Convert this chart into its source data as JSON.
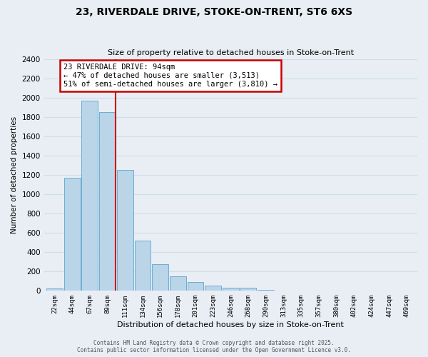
{
  "title1": "23, RIVERDALE DRIVE, STOKE-ON-TRENT, ST6 6XS",
  "title2": "Size of property relative to detached houses in Stoke-on-Trent",
  "xlabel": "Distribution of detached houses by size in Stoke-on-Trent",
  "ylabel": "Number of detached properties",
  "bar_labels": [
    "22sqm",
    "44sqm",
    "67sqm",
    "89sqm",
    "111sqm",
    "134sqm",
    "156sqm",
    "178sqm",
    "201sqm",
    "223sqm",
    "246sqm",
    "268sqm",
    "290sqm",
    "313sqm",
    "335sqm",
    "357sqm",
    "380sqm",
    "402sqm",
    "424sqm",
    "447sqm",
    "469sqm"
  ],
  "bar_values": [
    25,
    1170,
    1970,
    1850,
    1250,
    520,
    275,
    150,
    90,
    55,
    35,
    30,
    10,
    5,
    2,
    1,
    1,
    0,
    0,
    0,
    0
  ],
  "bar_color": "#bad4e8",
  "bar_edge_color": "#6aaed6",
  "vline_color": "#cc0000",
  "annotation_text": "23 RIVERDALE DRIVE: 94sqm\n← 47% of detached houses are smaller (3,513)\n51% of semi-detached houses are larger (3,810) →",
  "annotation_box_color": "white",
  "annotation_box_edge_color": "#cc0000",
  "ylim": [
    0,
    2400
  ],
  "yticks": [
    0,
    200,
    400,
    600,
    800,
    1000,
    1200,
    1400,
    1600,
    1800,
    2000,
    2200,
    2400
  ],
  "grid_color": "#d0dce8",
  "bg_color": "#e8eef4",
  "footer1": "Contains HM Land Registry data © Crown copyright and database right 2025.",
  "footer2": "Contains public sector information licensed under the Open Government Licence v3.0."
}
